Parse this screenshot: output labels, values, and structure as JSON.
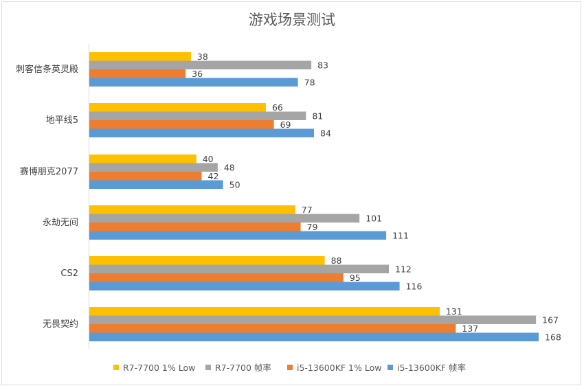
{
  "chart_data": {
    "type": "bar",
    "orientation": "horizontal",
    "title": "游戏场景测试",
    "categories": [
      "刺客信条英灵殿",
      "地平线5",
      "赛博朋克2077",
      "永劫无间",
      "CS2",
      "无畏契约"
    ],
    "series": [
      {
        "name": "R7-7700 1% Low",
        "color": "#ffc000",
        "values": [
          38,
          66,
          40,
          77,
          88,
          131
        ]
      },
      {
        "name": "R7-7700 帧率",
        "color": "#a5a5a5",
        "values": [
          83,
          81,
          48,
          101,
          112,
          167
        ]
      },
      {
        "name": "i5-13600KF 1% Low",
        "color": "#ed7d31",
        "values": [
          36,
          69,
          42,
          79,
          95,
          137
        ]
      },
      {
        "name": "i5-13600KF 帧率",
        "color": "#5b9bd5",
        "values": [
          78,
          84,
          50,
          111,
          116,
          168
        ]
      }
    ],
    "xlim": [
      0,
      180
    ],
    "grid": false,
    "legend": "bottom"
  }
}
